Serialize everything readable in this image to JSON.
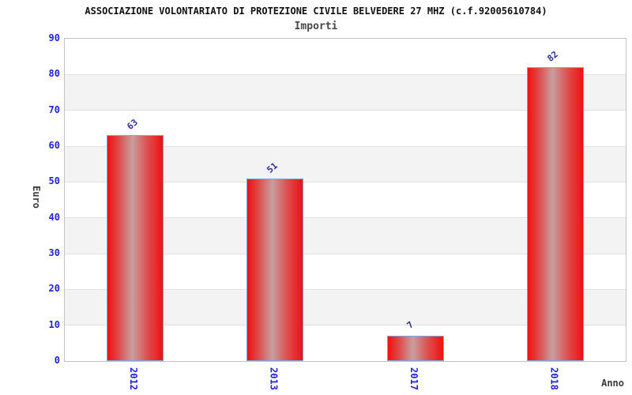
{
  "header": {
    "title": "ASSOCIAZIONE VOLONTARIATO DI PROTEZIONE CIVILE BELVEDERE 27 MHZ (c.f.92005610784)",
    "subtitle": "Importi"
  },
  "chart_data": {
    "type": "bar",
    "title": "ASSOCIAZIONE VOLONTARIATO DI PROTEZIONE CIVILE BELVEDERE 27 MHZ (c.f.92005610784)",
    "subtitle": "Importi",
    "categories": [
      "2012",
      "2013",
      "2017",
      "2018"
    ],
    "values": [
      63,
      51,
      7,
      82
    ],
    "bar_value_labels": [
      "63",
      "51",
      "7",
      "82"
    ],
    "xlabel": "Anno",
    "ylabel": "Euro",
    "ylim": [
      0,
      90
    ],
    "yticks": [
      0,
      10,
      20,
      30,
      40,
      50,
      60,
      70,
      80,
      90
    ],
    "grid": "horizontal-bands",
    "legend": "none",
    "colors": {
      "bar_edge": "#7ea6e0",
      "bar_fill_main": "#f01010",
      "bar_fill_highlight": "#c89e9e",
      "tick_label": "#2222dd",
      "value_label": "#2e2e99",
      "band_gray": "#f3f3f3",
      "gridline": "#e0e0e0",
      "plot_border": "#c2c2c2",
      "title": "#111111",
      "subtitle": "#474747",
      "axis_title": "#3a3a3a"
    }
  }
}
